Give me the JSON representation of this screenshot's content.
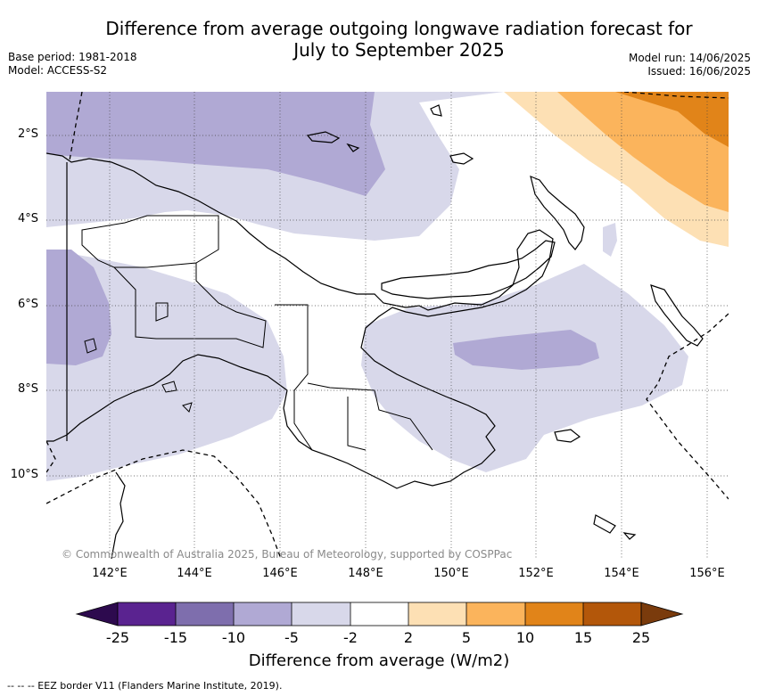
{
  "header": {
    "title_line1": "Difference from average outgoing longwave radiation forecast for",
    "title_line2": "July to September 2025",
    "base_period": "Base period: 1981-2018",
    "model": "Model: ACCESS-S2",
    "model_run": "Model run: 14/06/2025",
    "issued": "Issued: 16/06/2025"
  },
  "map": {
    "lat_ticks": [
      "2°S",
      "4°S",
      "6°S",
      "8°S",
      "10°S"
    ],
    "lon_ticks": [
      "142°E",
      "144°E",
      "146°E",
      "148°E",
      "150°E",
      "152°E",
      "154°E",
      "156°E"
    ],
    "copyright": "© Commonwealth of Australia 2025, Bureau of Meteorology, supported by COSPPac",
    "land_line_color": "#000000"
  },
  "colorbar": {
    "tick_labels": [
      "-25",
      "-15",
      "-10",
      "-5",
      "-2",
      "2",
      "5",
      "10",
      "15",
      "25"
    ],
    "colors": [
      "#2d0a4e",
      "#5a2390",
      "#7e6ead",
      "#b0a9d4",
      "#d8d8ea",
      "#ffffff",
      "#fde0b4",
      "#fbb45c",
      "#e18419",
      "#b3570a",
      "#7a3b0c"
    ],
    "title": "Difference from average (W/m2)"
  },
  "legend": {
    "eez": "--  --  -- EEZ border V11 (Flanders Marine Institute, 2019)."
  }
}
